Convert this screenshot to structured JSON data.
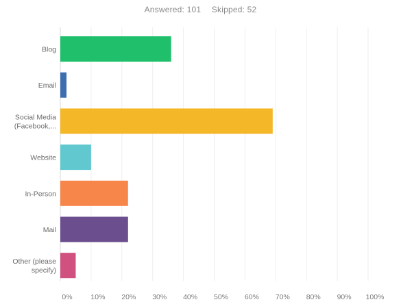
{
  "summary": {
    "answered": "Answered: 101",
    "skipped": "Skipped: 52"
  },
  "chart_data": {
    "type": "bar",
    "orientation": "horizontal",
    "categories": [
      [
        "Blog"
      ],
      [
        "Email"
      ],
      [
        "Social Media",
        "(Facebook,..."
      ],
      [
        "Website"
      ],
      [
        "In-Person"
      ],
      [
        "Mail"
      ],
      [
        "Other (please",
        "specify)"
      ]
    ],
    "values": [
      36,
      2,
      69,
      10,
      22,
      22,
      5
    ],
    "unit": "%",
    "xlim": [
      0,
      100
    ],
    "xticks": [
      "0%",
      "10%",
      "20%",
      "30%",
      "40%",
      "50%",
      "60%",
      "70%",
      "80%",
      "90%",
      "100%"
    ],
    "colors": [
      "#1fbf6b",
      "#3d6fb0",
      "#f4b728",
      "#62c8d0",
      "#f7864a",
      "#6a4e8e",
      "#d0507f"
    ],
    "grid": true
  }
}
